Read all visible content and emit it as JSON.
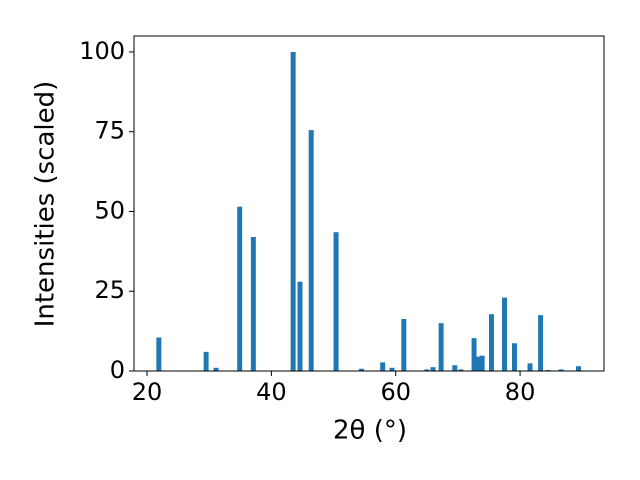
{
  "chart_data": {
    "type": "bar",
    "xlabel": "2θ (°)",
    "ylabel": "Intensities (scaled)",
    "x": [
      21.9,
      29.5,
      31.1,
      34.9,
      37.1,
      43.5,
      44.6,
      46.4,
      50.4,
      54.5,
      57.9,
      59.4,
      61.3,
      65.0,
      66.0,
      67.3,
      69.5,
      70.5,
      72.6,
      73.3,
      73.9,
      75.4,
      77.5,
      79.1,
      81.6,
      83.3,
      84.5,
      86.6,
      89.4
    ],
    "values": [
      10.5,
      6,
      1,
      51.5,
      42,
      100,
      28,
      75.5,
      43.5,
      0.7,
      2.7,
      1,
      16.3,
      0.5,
      1.2,
      15,
      1.8,
      0.5,
      10.3,
      4.5,
      4.8,
      17.8,
      23,
      8.7,
      2.4,
      17.5,
      0.3,
      0.5,
      1.5
    ],
    "color": "#1f77b4",
    "xlim": [
      17.9,
      93.5
    ],
    "xticks": [
      20,
      40,
      60,
      80
    ],
    "ylim": [
      0,
      105
    ],
    "yticks": [
      0,
      25,
      50,
      75,
      100
    ]
  }
}
